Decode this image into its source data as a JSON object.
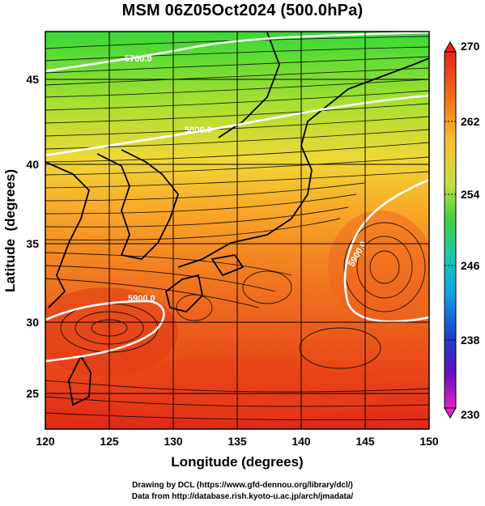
{
  "title": "MSM 06Z05Oct2024 (500.0hPa)",
  "map": {
    "x_axis": {
      "label": "Longitude (degrees)",
      "min": 120,
      "max": 150,
      "ticks": [
        "120",
        "125",
        "130",
        "135",
        "140",
        "145",
        "150"
      ]
    },
    "y_axis": {
      "label": "Latitude  (degrees)",
      "min": 22.4,
      "max": 47.6,
      "ticks": [
        "25",
        "30",
        "35",
        "40",
        "45"
      ]
    },
    "grid": true,
    "contours": [
      {
        "label": "5700.0"
      },
      {
        "label": "5800.0"
      },
      {
        "label": "5900.0"
      },
      {
        "label": "5900.0"
      }
    ]
  },
  "colorbar": {
    "ticks": [
      "270",
      "262",
      "254",
      "246",
      "238",
      "230"
    ],
    "colors": [
      "#e8221c",
      "#f0641c",
      "#f8a028",
      "#f4d040",
      "#b8e040",
      "#50d038",
      "#18c8a0",
      "#10a8e8",
      "#1060d8",
      "#2020c0",
      "#8010c0",
      "#e020c8"
    ]
  },
  "credits": [
    "Drawing by DCL (https://www.gfd-dennou.org/library/dcl/)",
    "Data from http://database.rish.kyoto-u.ac.jp/arch/jmadata/"
  ]
}
